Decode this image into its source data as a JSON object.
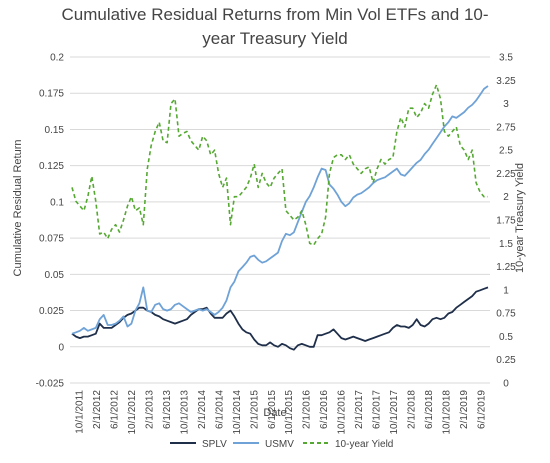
{
  "chart_data": {
    "type": "line",
    "title_lines": [
      "Cumulative Residual Returns from Min Vol ETFs and 10-",
      "year Treasury Yield"
    ],
    "xlabel": "Date",
    "ylabel_left": "Cumulative Residual Return",
    "ylabel_right": "10-year Treasury Yield",
    "ylim_left": [
      -0.025,
      0.2
    ],
    "ylim_right": [
      0,
      3.5
    ],
    "yticks_left": [
      "-0.025",
      "0",
      "0.025",
      "0.05",
      "0.075",
      "0.1",
      "0.125",
      "0.15",
      "0.175",
      "0.2"
    ],
    "yticks_right": [
      "0",
      "0.25",
      "0.5",
      "0.75",
      "1",
      "1.25",
      "1.5",
      "1.75",
      "2",
      "2.25",
      "2.5",
      "2.75",
      "3",
      "3.25",
      "3.5"
    ],
    "x_tick_labels": [
      "10/1/2011",
      "2/1/2012",
      "6/1/2012",
      "10/1/2012",
      "2/1/2013",
      "6/1/2013",
      "10/1/2013",
      "2/1/2014",
      "6/1/2014",
      "10/1/2014",
      "2/1/2015",
      "6/1/2015",
      "10/1/2015",
      "2/1/2016",
      "6/1/2016",
      "10/1/2016",
      "2/1/2017",
      "6/1/2017",
      "10/1/2017",
      "2/1/2018",
      "6/1/2018",
      "10/1/2018",
      "2/1/2019",
      "6/1/2019"
    ],
    "legend_position": "bottom",
    "grid": "horizontal",
    "series": [
      {
        "name": "SPLV",
        "axis": "left",
        "color": "#1f2f4a",
        "style": "solid",
        "values": [
          0.009,
          0.007,
          0.006,
          0.007,
          0.007,
          0.008,
          0.009,
          0.016,
          0.013,
          0.013,
          0.013,
          0.015,
          0.017,
          0.02,
          0.022,
          0.023,
          0.025,
          0.027,
          0.027,
          0.025,
          0.024,
          0.022,
          0.021,
          0.019,
          0.018,
          0.017,
          0.016,
          0.017,
          0.018,
          0.019,
          0.022,
          0.024,
          0.026,
          0.026,
          0.027,
          0.023,
          0.02,
          0.02,
          0.02,
          0.023,
          0.025,
          0.021,
          0.016,
          0.012,
          0.01,
          0.009,
          0.005,
          0.002,
          0.001,
          0.001,
          0.003,
          0.001,
          0.0,
          0.002,
          0.001,
          -0.001,
          -0.002,
          0.001,
          0.002,
          0.001,
          0.0,
          0.0,
          0.008,
          0.008,
          0.009,
          0.01,
          0.012,
          0.009,
          0.006,
          0.005,
          0.006,
          0.007,
          0.006,
          0.005,
          0.004,
          0.005,
          0.006,
          0.007,
          0.008,
          0.009,
          0.01,
          0.013,
          0.015,
          0.014,
          0.014,
          0.013,
          0.015,
          0.019,
          0.015,
          0.014,
          0.016,
          0.019,
          0.02,
          0.019,
          0.02,
          0.023,
          0.024,
          0.027,
          0.029,
          0.031,
          0.033,
          0.035,
          0.038,
          0.039,
          0.04,
          0.041
        ]
      },
      {
        "name": "USMV",
        "axis": "left",
        "color": "#6fa2d6",
        "style": "solid",
        "values": [
          0.009,
          0.01,
          0.011,
          0.013,
          0.011,
          0.012,
          0.013,
          0.019,
          0.022,
          0.015,
          0.015,
          0.016,
          0.018,
          0.021,
          0.014,
          0.016,
          0.025,
          0.03,
          0.041,
          0.025,
          0.024,
          0.029,
          0.03,
          0.026,
          0.025,
          0.026,
          0.029,
          0.03,
          0.028,
          0.026,
          0.024,
          0.025,
          0.026,
          0.025,
          0.026,
          0.024,
          0.022,
          0.024,
          0.027,
          0.032,
          0.041,
          0.045,
          0.052,
          0.055,
          0.058,
          0.062,
          0.063,
          0.06,
          0.058,
          0.059,
          0.061,
          0.063,
          0.065,
          0.073,
          0.078,
          0.077,
          0.079,
          0.086,
          0.093,
          0.1,
          0.104,
          0.11,
          0.117,
          0.123,
          0.122,
          0.112,
          0.109,
          0.105,
          0.1,
          0.097,
          0.099,
          0.103,
          0.105,
          0.106,
          0.108,
          0.11,
          0.113,
          0.115,
          0.116,
          0.117,
          0.119,
          0.121,
          0.123,
          0.119,
          0.118,
          0.121,
          0.124,
          0.127,
          0.129,
          0.133,
          0.136,
          0.14,
          0.144,
          0.148,
          0.152,
          0.155,
          0.159,
          0.158,
          0.16,
          0.162,
          0.165,
          0.167,
          0.17,
          0.174,
          0.178,
          0.18
        ]
      },
      {
        "name": "10-year Yield",
        "axis": "right",
        "color": "#55a832",
        "style": "dashed",
        "values": [
          2.1,
          1.95,
          1.9,
          1.85,
          2.0,
          2.22,
          1.95,
          1.6,
          1.62,
          1.55,
          1.65,
          1.7,
          1.62,
          1.75,
          1.9,
          2.0,
          1.85,
          1.88,
          1.7,
          2.3,
          2.55,
          2.7,
          2.8,
          2.6,
          2.58,
          3.0,
          3.05,
          2.65,
          2.68,
          2.7,
          2.6,
          2.55,
          2.5,
          2.65,
          2.6,
          2.45,
          2.5,
          2.25,
          2.1,
          2.2,
          1.7,
          2.0,
          2.0,
          2.05,
          2.1,
          2.2,
          2.35,
          2.1,
          2.25,
          2.15,
          2.1,
          2.2,
          2.25,
          2.3,
          1.85,
          1.8,
          1.75,
          1.78,
          1.85,
          1.7,
          1.5,
          1.48,
          1.55,
          1.6,
          1.78,
          2.25,
          2.42,
          2.45,
          2.45,
          2.4,
          2.45,
          2.35,
          2.3,
          2.25,
          2.3,
          2.32,
          2.15,
          2.3,
          2.4,
          2.35,
          2.4,
          2.42,
          2.7,
          2.85,
          2.75,
          2.95,
          2.95,
          2.85,
          2.9,
          3.0,
          2.95,
          3.1,
          3.2,
          3.05,
          2.7,
          2.65,
          2.7,
          2.75,
          2.55,
          2.5,
          2.4,
          2.5,
          2.15,
          2.05,
          2.0,
          2.0
        ]
      }
    ]
  }
}
